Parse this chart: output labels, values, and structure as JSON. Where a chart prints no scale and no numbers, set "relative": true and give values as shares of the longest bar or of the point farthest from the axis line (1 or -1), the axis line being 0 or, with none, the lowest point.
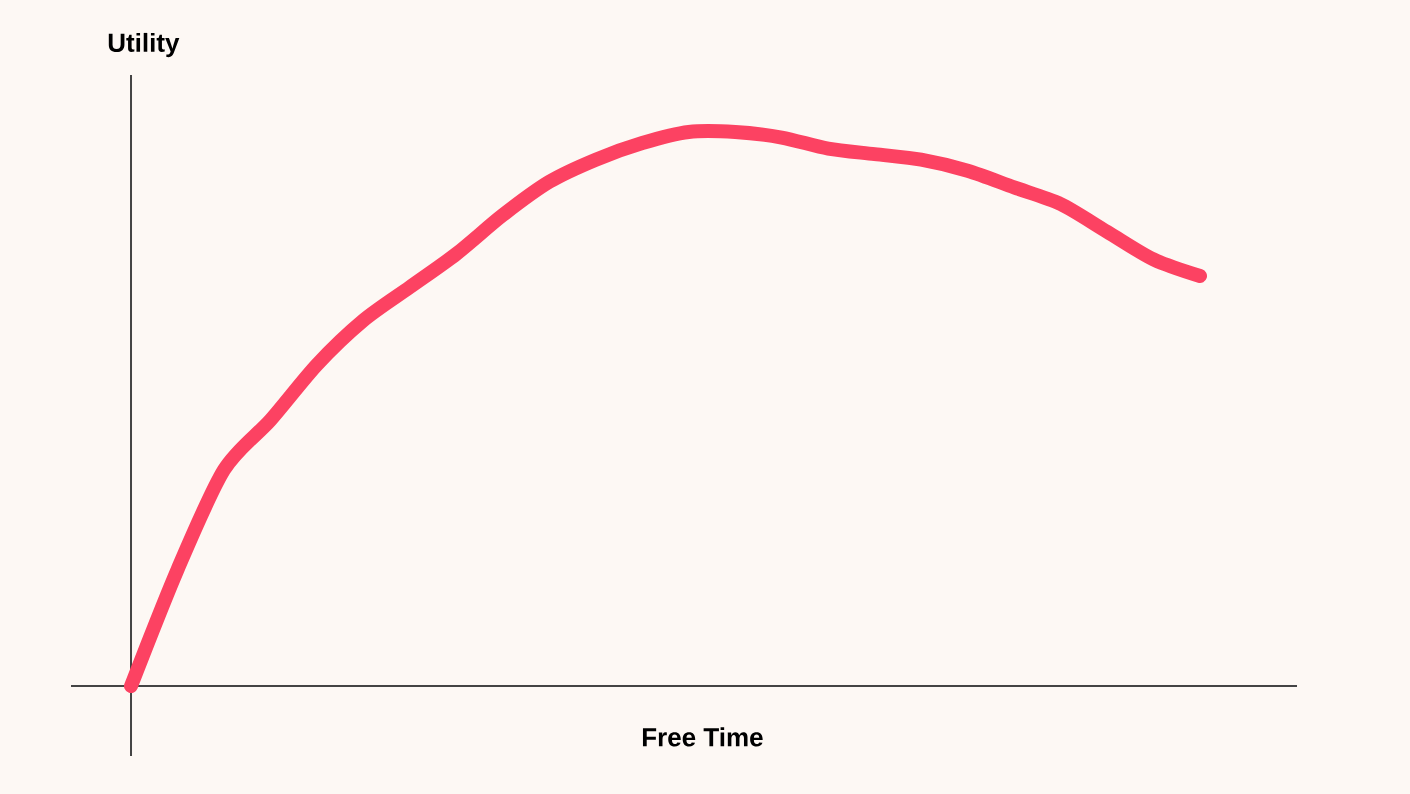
{
  "chart_data": {
    "type": "line",
    "xlabel": "Free Time",
    "ylabel": "Utility",
    "relative": true,
    "categories": [
      null,
      null,
      null,
      null,
      null,
      null,
      null,
      null,
      null,
      null,
      null,
      null,
      null,
      null,
      null,
      null,
      null,
      null,
      null,
      null,
      null,
      null,
      null,
      null
    ],
    "values": [
      0,
      0.21,
      0.39,
      0.48,
      0.58,
      0.66,
      0.72,
      0.78,
      0.85,
      0.91,
      0.95,
      0.98,
      1.0,
      1.0,
      0.99,
      0.97,
      0.96,
      0.95,
      0.93,
      0.9,
      0.87,
      0.82,
      0.77,
      0.74
    ],
    "color": "#fc4262"
  }
}
